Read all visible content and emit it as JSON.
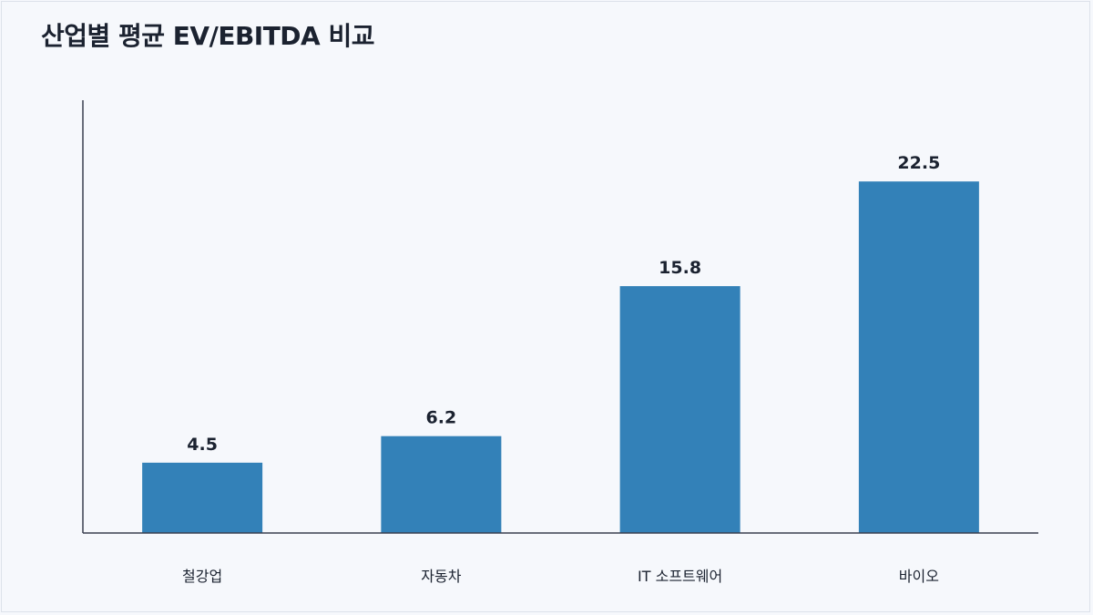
{
  "chart_data": {
    "type": "bar",
    "title": "산업별 평균 EV/EBITDA 비교",
    "categories": [
      "철강업",
      "자동차",
      "IT 소프트웨어",
      "바이오"
    ],
    "values": [
      4.5,
      6.2,
      15.8,
      22.5
    ],
    "data_labels": [
      "4.5",
      "6.2",
      "15.8",
      "22.5"
    ],
    "xlabel": "",
    "ylabel": "",
    "ylim": [
      0,
      27.7
    ],
    "grid": false,
    "bar_color": "#3381b8"
  }
}
